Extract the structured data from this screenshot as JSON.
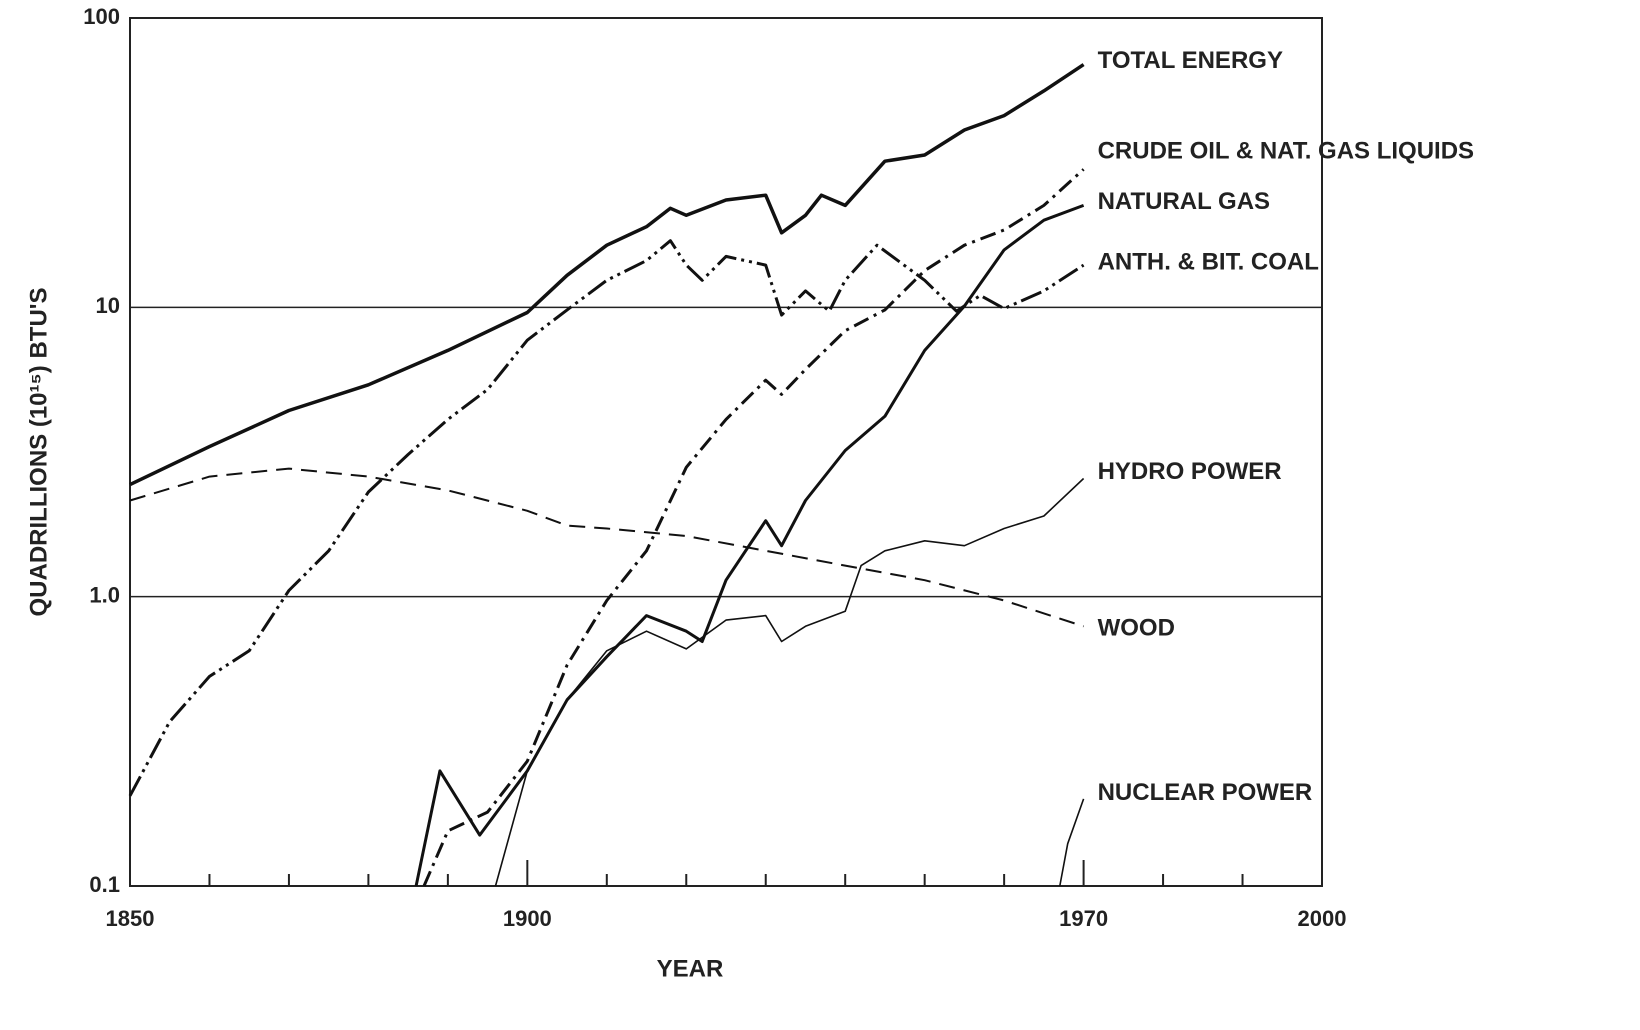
{
  "chart_data": {
    "type": "line",
    "ylabel": "QUADRILLIONS (10¹⁵) BTU'S",
    "xlabel": "YEAR",
    "xlim": [
      1850,
      2000
    ],
    "xticks": [
      1850,
      1900,
      1970,
      2000
    ],
    "xminorticks": [
      1860,
      1870,
      1880,
      1890,
      1910,
      1920,
      1930,
      1940,
      1950,
      1960,
      1980,
      1990
    ],
    "ylim": [
      0.1,
      100
    ],
    "yticks": [
      0.1,
      {
        "value": 1,
        "label": "1.0"
      },
      10,
      100
    ],
    "yscale": "log",
    "grid": true,
    "series": [
      {
        "name": "TOTAL ENERGY",
        "color": "#111111",
        "style": "solid",
        "width": 3.5,
        "x": [
          1850,
          1860,
          1870,
          1880,
          1890,
          1900,
          1905,
          1910,
          1915,
          1918,
          1920,
          1925,
          1930,
          1932,
          1935,
          1937,
          1940,
          1945,
          1950,
          1955,
          1960,
          1965,
          1970
        ],
        "values": [
          2.44,
          3.3,
          4.4,
          5.4,
          7.1,
          9.6,
          12.9,
          16.4,
          19,
          22,
          20.8,
          23.5,
          24.4,
          18.1,
          20.8,
          24.4,
          22.5,
          32,
          33.6,
          41,
          46,
          56,
          69
        ]
      },
      {
        "name": "CRUDE OIL & NAT. GAS LIQUIDS",
        "color": "#111111",
        "style": "dashdot",
        "width": 3,
        "x": [
          1887,
          1890,
          1895,
          1900,
          1905,
          1910,
          1915,
          1920,
          1925,
          1930,
          1932,
          1935,
          1940,
          1945,
          1950,
          1955,
          1960,
          1965,
          1970
        ],
        "values": [
          0.1,
          0.155,
          0.18,
          0.27,
          0.58,
          0.97,
          1.44,
          2.8,
          4.1,
          5.6,
          5.0,
          6.1,
          8.3,
          9.8,
          13.4,
          16.4,
          18.5,
          22.5,
          30
        ]
      },
      {
        "name": "NATURAL GAS",
        "color": "#111111",
        "style": "solid",
        "width": 3,
        "x": [
          1886,
          1889,
          1894,
          1900,
          1905,
          1910,
          1915,
          1920,
          1922,
          1925,
          1930,
          1932,
          1935,
          1940,
          1945,
          1950,
          1955,
          1960,
          1965,
          1970
        ],
        "values": [
          0.1,
          0.25,
          0.15,
          0.25,
          0.44,
          0.62,
          0.86,
          0.76,
          0.7,
          1.14,
          1.83,
          1.5,
          2.15,
          3.2,
          4.2,
          7.1,
          10.1,
          15.8,
          20,
          22.5
        ]
      },
      {
        "name": "ANTH. & BIT. COAL",
        "color": "#111111",
        "style": "dashdotdot",
        "width": 3,
        "x": [
          1850,
          1855,
          1860,
          1865,
          1870,
          1875,
          1880,
          1885,
          1890,
          1895,
          1900,
          1905,
          1910,
          1915,
          1918,
          1920,
          1922,
          1925,
          1930,
          1932,
          1935,
          1938,
          1940,
          1944,
          1950,
          1954,
          1957,
          1960,
          1965,
          1970
        ],
        "values": [
          0.205,
          0.37,
          0.53,
          0.65,
          1.05,
          1.44,
          2.3,
          3.1,
          4.1,
          5.2,
          7.7,
          9.8,
          12.4,
          14.5,
          17,
          14,
          12.4,
          15,
          14,
          9.4,
          11.4,
          9.7,
          12.4,
          16.4,
          12.4,
          9.7,
          11,
          9.9,
          11.4,
          14
        ]
      },
      {
        "name": "HYDRO POWER",
        "color": "#111111",
        "style": "solid",
        "width": 1.6,
        "x": [
          1896,
          1900,
          1905,
          1910,
          1915,
          1920,
          1925,
          1930,
          1932,
          1935,
          1940,
          1942,
          1945,
          1950,
          1955,
          1960,
          1965,
          1970
        ],
        "values": [
          0.1,
          0.25,
          0.44,
          0.65,
          0.76,
          0.66,
          0.83,
          0.86,
          0.7,
          0.79,
          0.89,
          1.28,
          1.44,
          1.56,
          1.5,
          1.72,
          1.9,
          2.56
        ]
      },
      {
        "name": "WOOD",
        "color": "#111111",
        "style": "dashed",
        "width": 2,
        "x": [
          1850,
          1860,
          1870,
          1880,
          1890,
          1900,
          1905,
          1910,
          1920,
          1930,
          1940,
          1950,
          1960,
          1970
        ],
        "values": [
          2.15,
          2.6,
          2.77,
          2.6,
          2.33,
          1.98,
          1.76,
          1.72,
          1.62,
          1.44,
          1.28,
          1.14,
          0.97,
          0.79
        ]
      },
      {
        "name": "NUCLEAR POWER",
        "color": "#111111",
        "style": "solid",
        "width": 1.6,
        "x": [
          1967,
          1968,
          1970
        ],
        "values": [
          0.1,
          0.14,
          0.2
        ]
      }
    ]
  }
}
